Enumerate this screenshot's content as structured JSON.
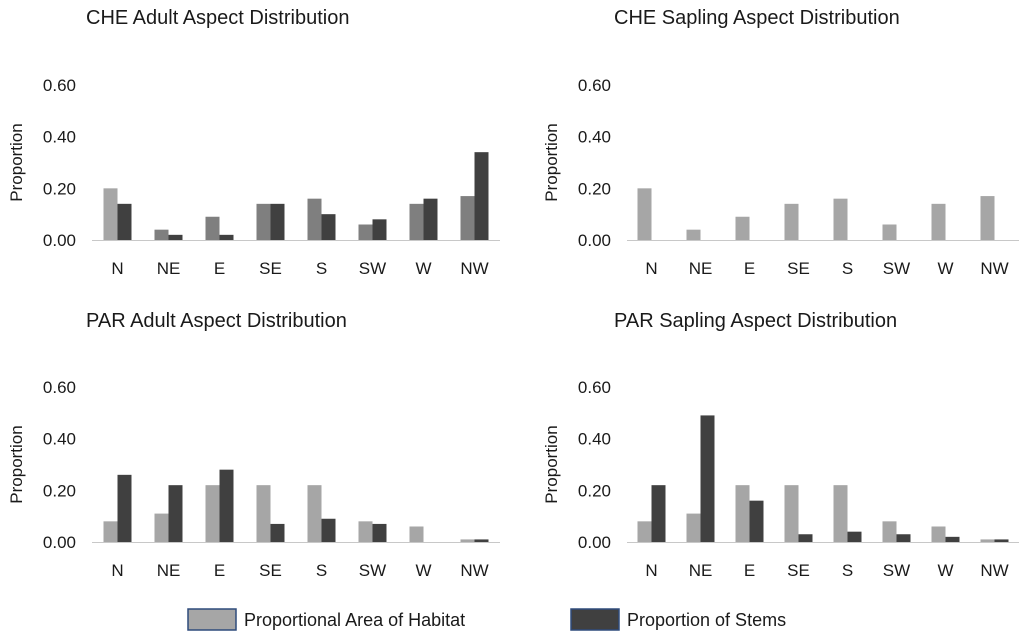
{
  "colors": {
    "habitat": "#a6a6a6",
    "stems": "#404040",
    "mid_gray": "#7f7f7f",
    "axis": "#c8c8c8"
  },
  "legend": {
    "habitat_label": "Proportional Area of Habitat",
    "stems_label": "Proportion of Stems"
  },
  "chart_data": [
    {
      "type": "bar",
      "title": "CHE Adult Aspect Distribution",
      "ylabel": "Proportion",
      "xlabel": "",
      "ylim": [
        0,
        0.6
      ],
      "yticks": [
        "0.00",
        "0.20",
        "0.40",
        "0.60"
      ],
      "categories": [
        "N",
        "NE",
        "E",
        "SE",
        "S",
        "SW",
        "W",
        "NW"
      ],
      "series": [
        {
          "name": "Proportional Area of Habitat",
          "values": [
            0.2,
            0.04,
            0.09,
            0.14,
            0.16,
            0.06,
            0.14,
            0.17
          ],
          "color": "#7f7f7f",
          "colorFirst": "#a6a6a6"
        },
        {
          "name": "Proportion of Stems",
          "values": [
            0.14,
            0.02,
            0.02,
            0.14,
            0.1,
            0.08,
            0.16,
            0.34
          ],
          "color": "#404040"
        }
      ]
    },
    {
      "type": "bar",
      "title": "CHE Sapling Aspect Distribution",
      "ylabel": "Proportion",
      "xlabel": "",
      "ylim": [
        0,
        0.6
      ],
      "yticks": [
        "0.00",
        "0.20",
        "0.40",
        "0.60"
      ],
      "categories": [
        "N",
        "NE",
        "E",
        "SE",
        "S",
        "SW",
        "W",
        "NW"
      ],
      "series": [
        {
          "name": "Proportional Area of Habitat",
          "values": [
            0.2,
            0.04,
            0.09,
            0.14,
            0.16,
            0.06,
            0.14,
            0.17
          ],
          "color": "#a6a6a6"
        },
        {
          "name": "Proportion of Stems",
          "values": [
            0,
            0,
            0,
            0,
            0,
            0,
            0,
            0
          ],
          "color": "#404040"
        }
      ]
    },
    {
      "type": "bar",
      "title": "PAR Adult Aspect Distribution",
      "ylabel": "Proportion",
      "xlabel": "",
      "ylim": [
        0,
        0.6
      ],
      "yticks": [
        "0.00",
        "0.20",
        "0.40",
        "0.60"
      ],
      "categories": [
        "N",
        "NE",
        "E",
        "SE",
        "S",
        "SW",
        "W",
        "NW"
      ],
      "series": [
        {
          "name": "Proportional Area of Habitat",
          "values": [
            0.08,
            0.11,
            0.22,
            0.22,
            0.22,
            0.08,
            0.06,
            0.01
          ],
          "color": "#a6a6a6"
        },
        {
          "name": "Proportion of Stems",
          "values": [
            0.26,
            0.22,
            0.28,
            0.07,
            0.09,
            0.07,
            0.0,
            0.01
          ],
          "color": "#404040"
        }
      ]
    },
    {
      "type": "bar",
      "title": "PAR Sapling Aspect Distribution",
      "ylabel": "Proportion",
      "xlabel": "",
      "ylim": [
        0,
        0.6
      ],
      "yticks": [
        "0.00",
        "0.20",
        "0.40",
        "0.60"
      ],
      "categories": [
        "N",
        "NE",
        "E",
        "SE",
        "S",
        "SW",
        "W",
        "NW"
      ],
      "series": [
        {
          "name": "Proportional Area of Habitat",
          "values": [
            0.08,
            0.11,
            0.22,
            0.22,
            0.22,
            0.08,
            0.06,
            0.01
          ],
          "color": "#a6a6a6"
        },
        {
          "name": "Proportion of Stems",
          "values": [
            0.22,
            0.49,
            0.16,
            0.03,
            0.04,
            0.03,
            0.02,
            0.01
          ],
          "color": "#404040"
        }
      ]
    }
  ]
}
